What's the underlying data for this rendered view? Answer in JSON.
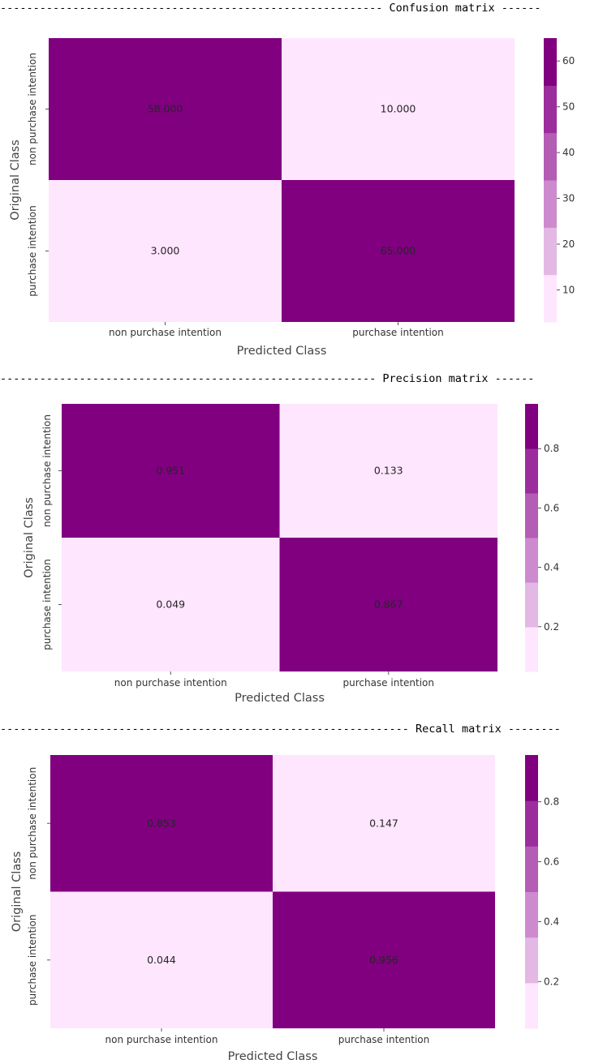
{
  "chart_data": [
    {
      "type": "heatmap",
      "header": "---------------------------------------------------------- Confusion matrix ------",
      "xlabel": "Predicted Class",
      "ylabel": "Original Class",
      "x_categories": [
        "non purchase intention",
        "purchase intention"
      ],
      "y_categories": [
        "non purchase intention",
        "purchase intention"
      ],
      "values": [
        [
          58.0,
          10.0
        ],
        [
          3.0,
          65.0
        ]
      ],
      "annotations": [
        [
          "58.000",
          "10.000"
        ],
        [
          "3.000",
          "65.000"
        ]
      ],
      "colorbar": {
        "vmin": 3,
        "vmax": 65,
        "ticks": [
          10,
          20,
          30,
          40,
          50,
          60
        ]
      }
    },
    {
      "type": "heatmap",
      "header": "--------------------------------------------------------- Precision matrix ------",
      "xlabel": "Predicted Class",
      "ylabel": "Original Class",
      "x_categories": [
        "non purchase intention",
        "purchase intention"
      ],
      "y_categories": [
        "non purchase intention",
        "purchase intention"
      ],
      "values": [
        [
          0.951,
          0.133
        ],
        [
          0.049,
          0.867
        ]
      ],
      "annotations": [
        [
          "0.951",
          "0.133"
        ],
        [
          "0.049",
          "0.867"
        ]
      ],
      "colorbar": {
        "vmin": 0.049,
        "vmax": 0.951,
        "ticks": [
          0.2,
          0.4,
          0.6,
          0.8
        ]
      }
    },
    {
      "type": "heatmap",
      "header": "-------------------------------------------------------------- Recall matrix --------",
      "xlabel": "Predicted Class",
      "ylabel": "Original Class",
      "x_categories": [
        "non purchase intention",
        "purchase intention"
      ],
      "y_categories": [
        "non purchase intention",
        "purchase intention"
      ],
      "values": [
        [
          0.853,
          0.147
        ],
        [
          0.044,
          0.956
        ]
      ],
      "annotations": [
        [
          "0.853",
          "0.147"
        ],
        [
          "0.044",
          "0.956"
        ]
      ],
      "colorbar": {
        "vmin": 0.044,
        "vmax": 0.956,
        "ticks": [
          0.2,
          0.4,
          0.6,
          0.8
        ]
      }
    }
  ],
  "palette": [
    "#fee6fe",
    "#e3b8e4",
    "#cd8ace",
    "#b45db5",
    "#9b2e9c",
    "#800080"
  ]
}
